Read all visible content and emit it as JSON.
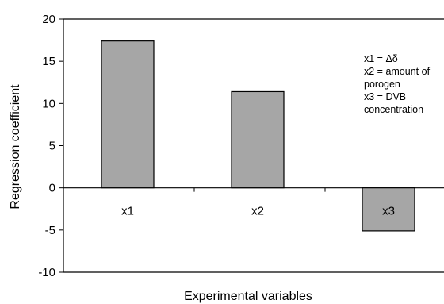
{
  "chart_data": {
    "type": "bar",
    "categories": [
      "x1",
      "x2",
      "x3"
    ],
    "values": [
      17.4,
      11.4,
      -5.1
    ],
    "xlabel": "Experimental variables",
    "ylabel": "Regression coefficient",
    "ylim": [
      -10,
      20
    ],
    "yticks": [
      20,
      15,
      10,
      5,
      0,
      -5,
      -10
    ],
    "ytick_labels": [
      "20",
      "15",
      "10",
      "5",
      "0",
      "-5",
      "-10"
    ],
    "grid": false,
    "legend": false,
    "annotation": [
      "x1 = Δδ",
      "x2 = amount of",
      "porogen",
      "x3 = DVB",
      "concentration"
    ],
    "colors": {
      "bar_fill": "#a6a6a6",
      "bar_stroke": "#000000",
      "axis": "#000000"
    }
  }
}
